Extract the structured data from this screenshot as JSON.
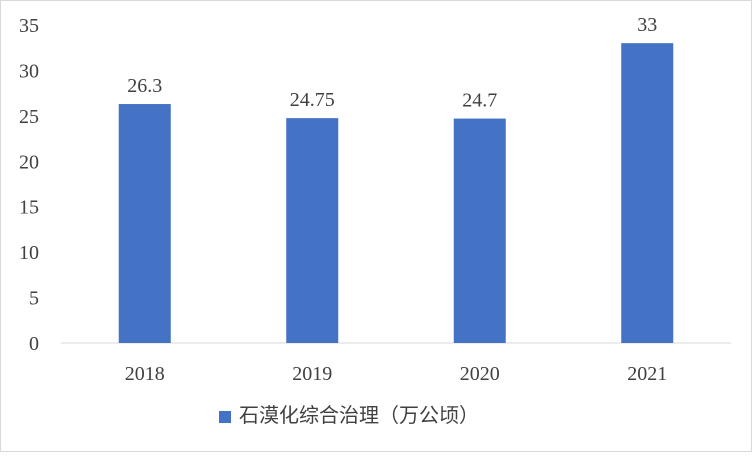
{
  "chart_data": {
    "type": "bar",
    "categories": [
      "2018",
      "2019",
      "2020",
      "2021"
    ],
    "series": [
      {
        "name": "石漠化综合治理（万公顷）",
        "values": [
          26.3,
          24.75,
          24.7,
          33
        ],
        "labels": [
          "26.3",
          "24.75",
          "24.7",
          "33"
        ]
      }
    ],
    "ylim": [
      0,
      35
    ],
    "y_ticks": [
      0,
      5,
      10,
      15,
      20,
      25,
      30,
      35
    ],
    "grid": false,
    "legend_position": "bottom",
    "colors": {
      "bar": "#4472C4",
      "text": "#404040",
      "axis": "#d9d9d9"
    }
  }
}
